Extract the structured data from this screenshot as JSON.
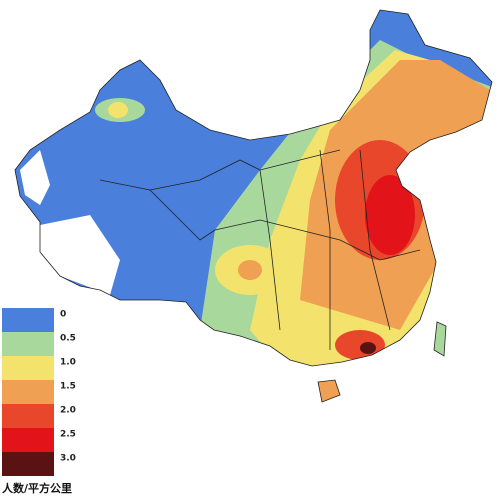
{
  "legend": {
    "items": [
      {
        "label": "0",
        "color": "#4a7fdc"
      },
      {
        "label": "0.5",
        "color": "#a8d89c"
      },
      {
        "label": "1.0",
        "color": "#f3e36c"
      },
      {
        "label": "1.5",
        "color": "#f0a052"
      },
      {
        "label": "2.0",
        "color": "#e8472c"
      },
      {
        "label": "2.5",
        "color": "#e2141a"
      },
      {
        "label": "3.0",
        "color": "#5a1212"
      }
    ],
    "caption": "人数/平方公里"
  }
}
